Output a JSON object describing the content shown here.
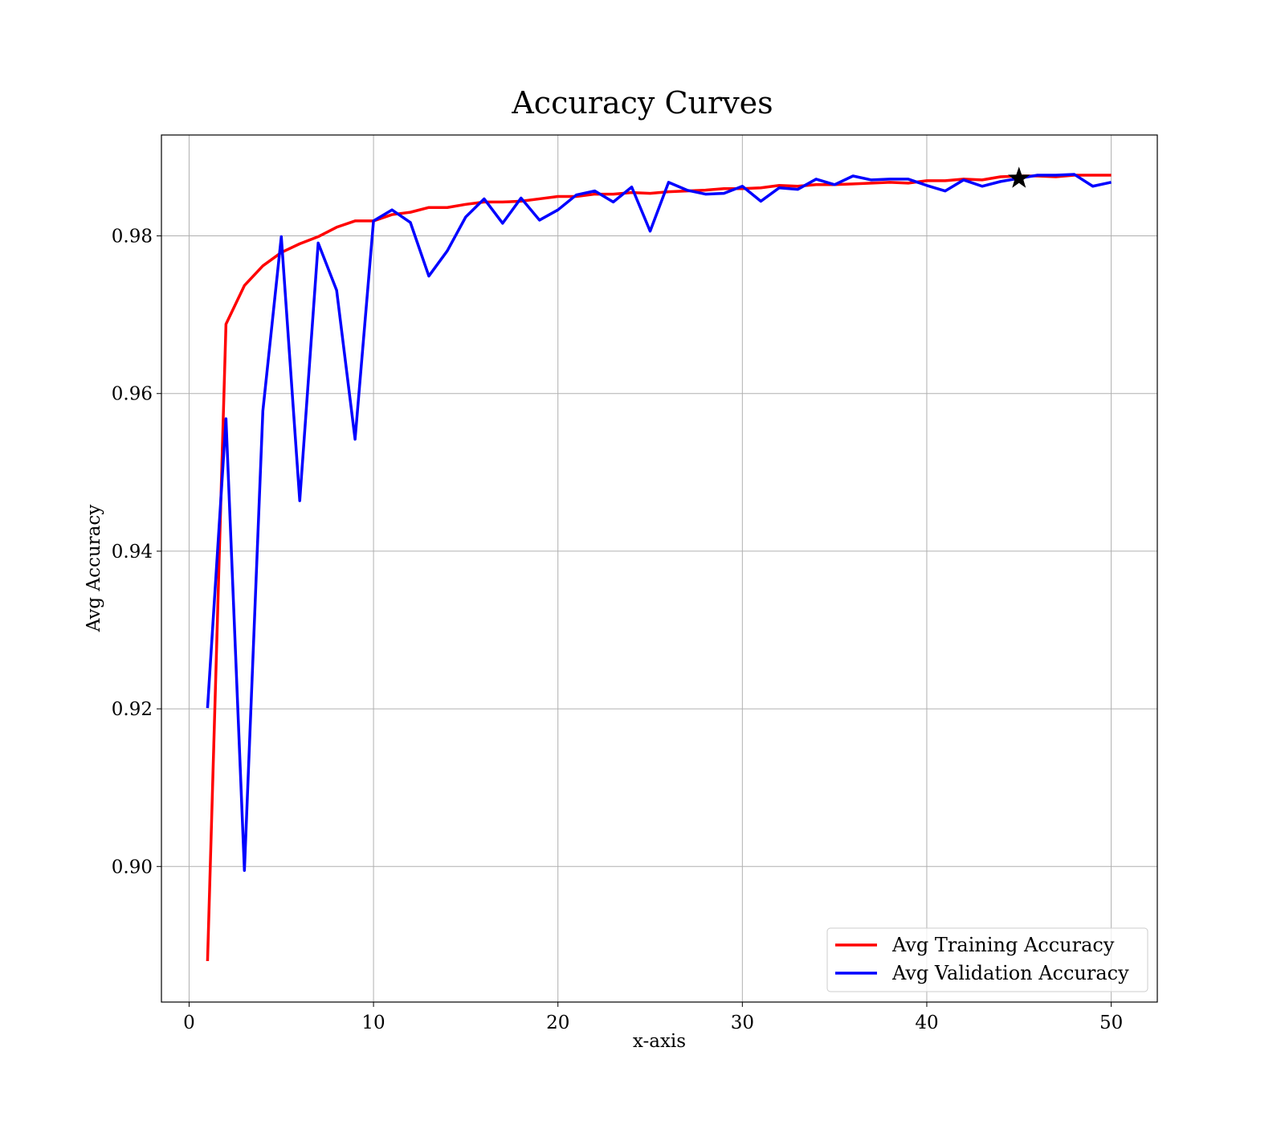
{
  "chart_data": {
    "type": "line",
    "title": "Accuracy Curves",
    "xlabel": "x-axis",
    "ylabel": "Avg Accuracy",
    "xlim": [
      -1.5,
      52.5
    ],
    "ylim": [
      0.8828,
      0.9928
    ],
    "xticks": [
      0,
      10,
      20,
      30,
      40,
      50
    ],
    "xtick_labels": [
      "0",
      "10",
      "20",
      "30",
      "40",
      "50"
    ],
    "yticks": [
      0.9,
      0.92,
      0.94,
      0.96,
      0.98
    ],
    "ytick_labels": [
      "0.90",
      "0.92",
      "0.94",
      "0.96",
      "0.98"
    ],
    "grid": true,
    "legend_position": "bottom-right",
    "x": [
      1,
      2,
      3,
      4,
      5,
      6,
      7,
      8,
      9,
      10,
      11,
      12,
      13,
      14,
      15,
      16,
      17,
      18,
      19,
      20,
      21,
      22,
      23,
      24,
      25,
      26,
      27,
      28,
      29,
      30,
      31,
      32,
      33,
      34,
      35,
      36,
      37,
      38,
      39,
      40,
      41,
      42,
      43,
      44,
      45,
      46,
      47,
      48,
      49,
      50
    ],
    "series": [
      {
        "name": "Avg Training Accuracy",
        "color": "#ff0000",
        "values": [
          0.888,
          0.9688,
          0.9737,
          0.9762,
          0.9779,
          0.979,
          0.9799,
          0.9811,
          0.9819,
          0.9819,
          0.9827,
          0.983,
          0.9836,
          0.9836,
          0.984,
          0.9843,
          0.9843,
          0.9844,
          0.9847,
          0.985,
          0.985,
          0.9853,
          0.9853,
          0.9855,
          0.9854,
          0.9856,
          0.9857,
          0.9858,
          0.986,
          0.986,
          0.9861,
          0.9864,
          0.9863,
          0.9865,
          0.9865,
          0.9866,
          0.9867,
          0.9868,
          0.9867,
          0.987,
          0.987,
          0.9872,
          0.9871,
          0.9875,
          0.9876,
          0.9876,
          0.9875,
          0.9877,
          0.9877,
          0.9877
        ]
      },
      {
        "name": "Avg Validation Accuracy",
        "color": "#0000ff",
        "values": [
          0.9201,
          0.9568,
          0.8995,
          0.9578,
          0.9799,
          0.9464,
          0.9791,
          0.9731,
          0.9542,
          0.9819,
          0.9833,
          0.9817,
          0.9749,
          0.9781,
          0.9824,
          0.9847,
          0.9816,
          0.9848,
          0.982,
          0.9833,
          0.9852,
          0.9857,
          0.9843,
          0.9862,
          0.9806,
          0.9868,
          0.9858,
          0.9853,
          0.9854,
          0.9863,
          0.9844,
          0.9861,
          0.9859,
          0.9872,
          0.9865,
          0.9876,
          0.9871,
          0.9872,
          0.9872,
          0.9864,
          0.9857,
          0.9871,
          0.9863,
          0.9869,
          0.9873,
          0.9877,
          0.9877,
          0.9878,
          0.9863,
          0.9868
        ]
      }
    ],
    "annotations": [
      {
        "type": "star-marker",
        "x": 45,
        "y": 0.9873,
        "color": "#000000"
      }
    ]
  }
}
